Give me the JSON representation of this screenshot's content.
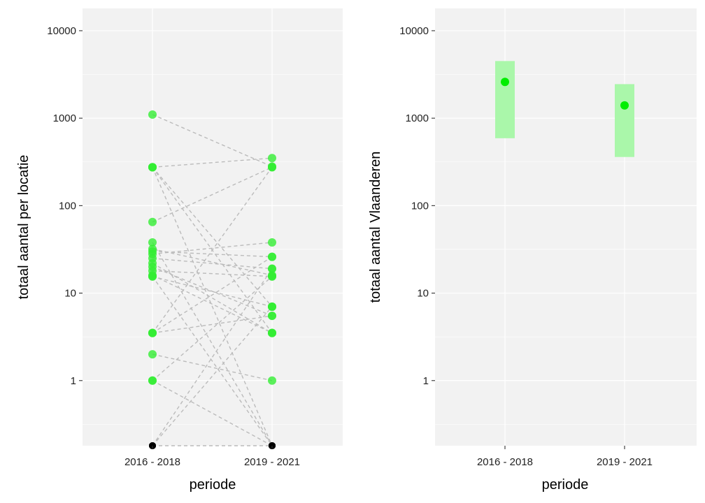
{
  "chart_data": [
    {
      "type": "scatter",
      "title": "",
      "xlabel": "periode",
      "ylabel": "totaal aantal per locatie",
      "yscale": "log",
      "ylim": [
        0.18,
        18000
      ],
      "yticks": [
        1,
        10,
        100,
        1000,
        10000
      ],
      "ytick_labels": [
        "1",
        "10",
        "100",
        "1000",
        "10000"
      ],
      "categories": [
        "2016 - 2018",
        "2019 - 2021"
      ],
      "zero_value": 0,
      "point_color": "#33ee33",
      "zero_point_color": "#000000",
      "line_color": "#bbbbbb",
      "grid": true,
      "locations": [
        {
          "values": [
            1100,
            280
          ]
        },
        {
          "values": [
            275,
            350
          ]
        },
        {
          "values": [
            275,
            3.5
          ]
        },
        {
          "values": [
            275,
            0
          ]
        },
        {
          "values": [
            275,
            7
          ]
        },
        {
          "values": [
            65,
            275
          ]
        },
        {
          "values": [
            38,
            0
          ]
        },
        {
          "values": [
            32,
            16
          ]
        },
        {
          "values": [
            30,
            26
          ]
        },
        {
          "values": [
            28,
            38
          ]
        },
        {
          "values": [
            25,
            19
          ]
        },
        {
          "values": [
            22,
            3.5
          ]
        },
        {
          "values": [
            20,
            5.5
          ]
        },
        {
          "values": [
            18,
            15.5
          ]
        },
        {
          "values": [
            16,
            3.5
          ]
        },
        {
          "values": [
            15.5,
            0
          ]
        },
        {
          "values": [
            15.5,
            7
          ]
        },
        {
          "values": [
            3.5,
            26
          ]
        },
        {
          "values": [
            3.5,
            5.5
          ]
        },
        {
          "values": [
            3.5,
            275
          ]
        },
        {
          "values": [
            2,
            1
          ]
        },
        {
          "values": [
            1,
            15.5
          ]
        },
        {
          "values": [
            1,
            0
          ]
        },
        {
          "values": [
            0,
            19
          ]
        },
        {
          "values": [
            0,
            7
          ]
        },
        {
          "values": [
            0,
            0
          ]
        }
      ]
    },
    {
      "type": "scatter",
      "title": "",
      "xlabel": "periode",
      "ylabel": "totaal aantal Vlaanderen",
      "yscale": "log",
      "ylim": [
        0.18,
        18000
      ],
      "yticks": [
        1,
        10,
        100,
        1000,
        10000
      ],
      "ytick_labels": [
        "1",
        "10",
        "100",
        "1000",
        "10000"
      ],
      "categories": [
        "2016 - 2018",
        "2019 - 2021"
      ],
      "point_color": "#00ee00",
      "interval_color": "#aaf7aa",
      "grid": true,
      "points": [
        {
          "category": "2016 - 2018",
          "value": 2600,
          "lower": 590,
          "upper": 4500
        },
        {
          "category": "2019 - 2021",
          "value": 1400,
          "lower": 360,
          "upper": 2450
        }
      ]
    }
  ]
}
